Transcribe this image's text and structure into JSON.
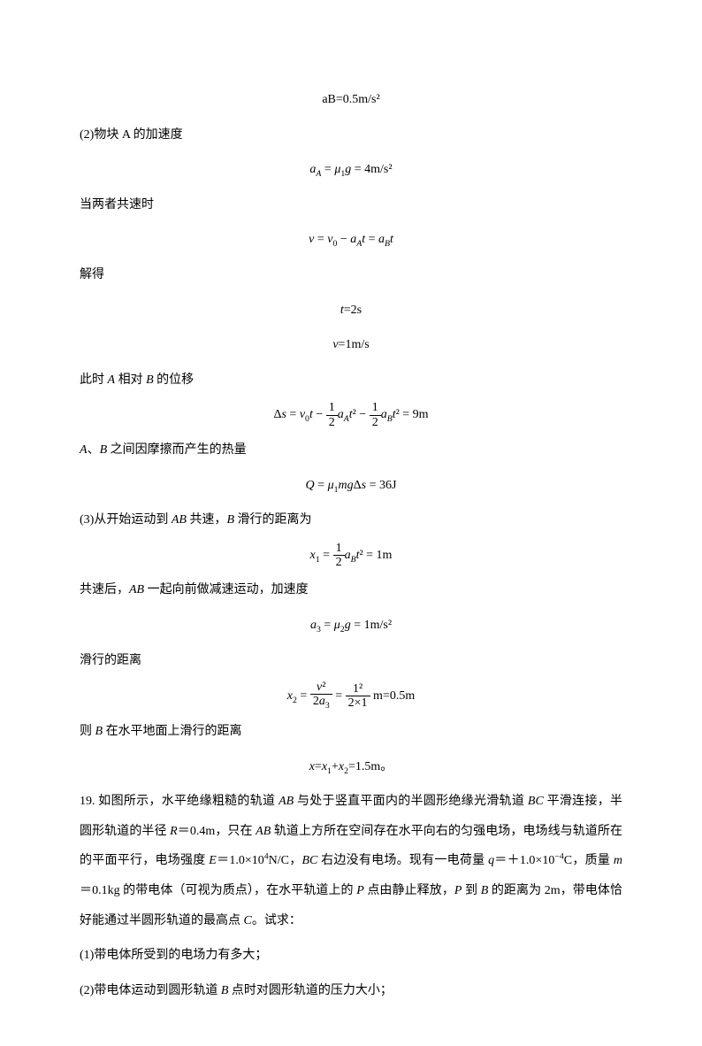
{
  "line1": "aB=0.5m/s²",
  "line2": "(2)物块 A 的加速度",
  "line3_html": "<span class='math'><span class='italic'>a<sub>A</sub></span> = <span class='italic'>μ</span><sub>1</sub><span class='italic'>g</span> = 4m/s²</span>",
  "line4": "当两者共速时",
  "line5_html": "<span class='math'><span class='italic'>v</span> = <span class='italic'>v</span><sub>0</sub> − <span class='italic'>a<sub>A</sub>t</span> = <span class='italic'>a<sub>B</sub>t</span></span>",
  "line6": " 解得",
  "line7_html": "<span class='math'><span class='italic'>t</span>=2s</span>",
  "line8_html": "<span class='math'><span class='italic'>v</span>=1m/s</span>",
  "line9_html": "此时 <span class='italic'>A</span> 相对 <span class='italic'>B</span> 的位移",
  "line10_html": "<span class='math'>Δ<span class='italic'>s</span> = <span class='italic'>v</span><sub>0</sub><span class='italic'>t</span> − <span class='frac'><span class='num'>1</span><span class='den'>2</span></span><span class='italic'>a<sub>A</sub>t</span>² − <span class='frac'><span class='num'>1</span><span class='den'>2</span></span><span class='italic'>a<sub>B</sub>t</span>² = 9m</span>",
  "line11_html": "<span class='italic'>A</span>、<span class='italic'>B</span> 之间因摩擦而产生的热量",
  "line12_html": "<span class='math'><span class='italic'>Q</span> = <span class='italic'>μ</span><sub>1</sub><span class='italic'>mg</span>Δ<span class='italic'>s</span> = 36J</span>",
  "line13_html": "(3)从开始运动到 <span class='italic'>AB</span> 共速，<span class='italic'>B</span> 滑行的距离为",
  "line14_html": "<span class='math'><span class='italic'>x</span><sub>1</sub> = <span class='frac'><span class='num'>1</span><span class='den'>2</span></span><span class='italic'>a<sub>B</sub>t</span>² = 1m</span>",
  "line15_html": "共速后，<span class='italic'>AB</span> 一起向前做减速运动，加速度",
  "line16_html": "<span class='math'><span class='italic'>a</span><sub>3</sub> = <span class='italic'>μ</span><sub>2</sub><span class='italic'>g</span> = 1m/s²</span>",
  "line17": "滑行的距离",
  "line18_html": "<span class='math'><span class='italic'>x</span><sub>2</sub> = <span class='frac'><span class='num'><span class='italic'>v</span>²</span><span class='den'>2<span class='italic'>a</span><sub>3</sub></span></span> = <span class='frac'><span class='num'>1²</span><span class='den'>2×1</span></span> m=0.5m</span>",
  "line19_html": "则 <span class='italic'>B</span> 在水平地面上滑行的距离",
  "line20_html": "<span class='math'><span class='italic'>x</span>=<span class='italic'>x</span><sub>1</sub>+<span class='italic'>x</span><sub>2</sub>=1.5m。</span>",
  "line21_html": "19. 如图所示，水平绝缘粗糙的轨道 <span class='italic'>AB</span> 与处于竖直平面内的半圆形绝缘光滑轨道 <span class='italic'>BC</span> 平滑连接，半圆形轨道的半径 <span class='italic'>R</span>＝0.4m，只在 <span class='italic'>AB</span> 轨道上方所在空间存在水平向右的匀强电场，电场线与轨道所在的平面平行，电场强度 <span class='italic'>E</span>＝1.0×10<sup>4</sup>N/C，<span class='italic'>BC</span> 右边没有电场。现有一电荷量 <span class='italic'>q</span>＝＋1.0×10<sup>−4</sup>C，质量 <span class='italic'>m</span>＝0.1kg 的带电体（可视为质点），在水平轨道上的 <span class='italic'>P</span> 点由静止释放，<span class='italic'>P</span> 到 <span class='italic'>B</span> 的距离为 2m，带电体恰好能通过半圆形轨道的最高点 <span class='italic'>C</span>。试求：",
  "line22": "(1)带电体所受到的电场力有多大；",
  "line23_html": "(2)带电体运动到圆形轨道 <span class='italic'>B</span> 点时对圆形轨道的压力大小；"
}
